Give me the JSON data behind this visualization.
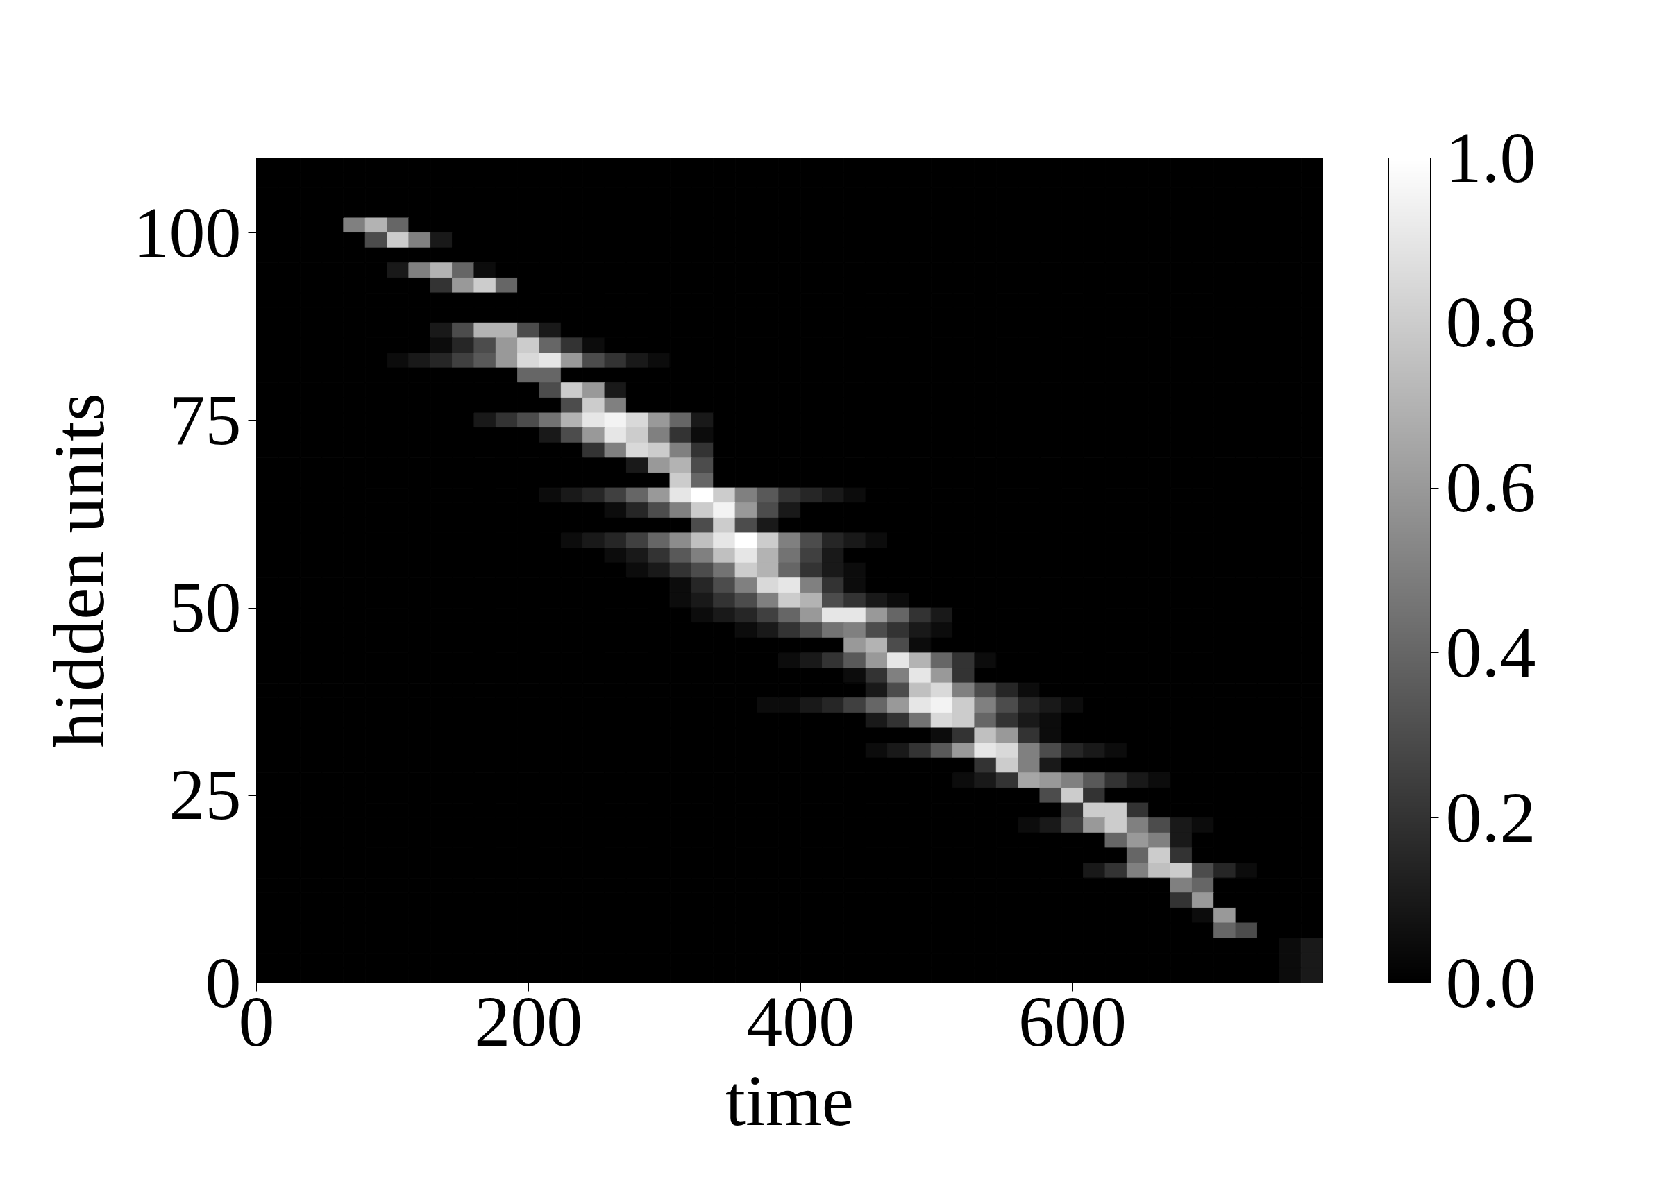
{
  "chart_data": {
    "type": "heatmap",
    "xlabel": "time",
    "ylabel": "hidden units",
    "xlim": [
      0,
      784
    ],
    "ylim": [
      0,
      110
    ],
    "xticks": [
      0,
      200,
      400,
      600
    ],
    "yticks": [
      0,
      25,
      50,
      75,
      100
    ],
    "clim": [
      0,
      1
    ],
    "cticks": [
      {
        "value": 0,
        "label": "0.0"
      },
      0.2,
      0.4,
      0.6,
      0.8,
      {
        "value": 1,
        "label": "1.0"
      }
    ],
    "colors": [
      "#000000",
      "#ffffff"
    ],
    "x": [
      8,
      24,
      40,
      56,
      72,
      88,
      104,
      120,
      136,
      152,
      168,
      184,
      200,
      216,
      232,
      248,
      264,
      280,
      296,
      312,
      328,
      344,
      360,
      376,
      392,
      408,
      424,
      440,
      456,
      472,
      488,
      504,
      520,
      536,
      552,
      568,
      584,
      600,
      616,
      632,
      648,
      664,
      680,
      696,
      712,
      728,
      744,
      760,
      776
    ],
    "y": [
      109,
      107,
      105,
      103,
      101,
      99,
      97,
      95,
      93,
      91,
      89,
      87,
      85,
      83,
      81,
      79,
      77,
      75,
      73,
      71,
      69,
      67,
      65,
      63,
      61,
      59,
      57,
      55,
      53,
      51,
      49,
      47,
      45,
      43,
      41,
      39,
      37,
      35,
      33,
      31,
      29,
      27,
      25,
      23,
      21,
      19,
      17,
      15,
      13,
      11,
      9,
      7,
      5,
      3,
      1
    ],
    "cells": [
      [
        0,
        0,
        0,
        0,
        0,
        0,
        0,
        0,
        0,
        0,
        0,
        0,
        0,
        0,
        0,
        0,
        0,
        0,
        0,
        0,
        0,
        0,
        0,
        0,
        0,
        0,
        0,
        0,
        0,
        0,
        0,
        0,
        0,
        0,
        0,
        0,
        0,
        0,
        0,
        0,
        0,
        0,
        0,
        0,
        0,
        0,
        0,
        0,
        0
      ],
      [
        0,
        0,
        0,
        0,
        0,
        0,
        0,
        0,
        0,
        0,
        0,
        0,
        0,
        0,
        0,
        0,
        0,
        0,
        0,
        0,
        0,
        0,
        0,
        0,
        0,
        0,
        0,
        0,
        0,
        0,
        0,
        0,
        0,
        0,
        0,
        0,
        0,
        0,
        0,
        0,
        0,
        0,
        0,
        0,
        0,
        0,
        0,
        0,
        0
      ],
      [
        0,
        0,
        0,
        0,
        0,
        0,
        0,
        0,
        0,
        0,
        0,
        0,
        0,
        0,
        0,
        0,
        0,
        0,
        0,
        0,
        0,
        0,
        0,
        0,
        0,
        0,
        0,
        0,
        0,
        0,
        0,
        0,
        0,
        0,
        0,
        0,
        0,
        0,
        0,
        0,
        0,
        0,
        0,
        0,
        0,
        0,
        0,
        0,
        0
      ],
      [
        0,
        0,
        0,
        0,
        0,
        0,
        0,
        0,
        0,
        0,
        0,
        0,
        0,
        0,
        0,
        0,
        0,
        0,
        0,
        0,
        0,
        0,
        0,
        0,
        0,
        0,
        0,
        0,
        0,
        0,
        0,
        0,
        0,
        0,
        0,
        0,
        0,
        0,
        0,
        0,
        0,
        0,
        0,
        0,
        0,
        0,
        0,
        0,
        0
      ],
      [
        0,
        0,
        0,
        0,
        0.5,
        0.7,
        0.4,
        0,
        0,
        0,
        0,
        0,
        0,
        0,
        0,
        0,
        0,
        0,
        0,
        0,
        0,
        0,
        0,
        0,
        0,
        0,
        0,
        0,
        0,
        0,
        0,
        0,
        0,
        0,
        0,
        0,
        0,
        0,
        0,
        0,
        0,
        0,
        0,
        0,
        0,
        0,
        0,
        0,
        0
      ],
      [
        0,
        0,
        0,
        0,
        0,
        0.3,
        0.8,
        0.5,
        0.1,
        0,
        0,
        0,
        0,
        0,
        0,
        0,
        0,
        0,
        0,
        0,
        0,
        0,
        0,
        0,
        0,
        0,
        0,
        0,
        0,
        0,
        0,
        0,
        0,
        0,
        0,
        0,
        0,
        0,
        0,
        0,
        0,
        0,
        0,
        0,
        0,
        0,
        0,
        0,
        0
      ],
      [
        0,
        0,
        0,
        0,
        0,
        0,
        0,
        0,
        0,
        0,
        0,
        0,
        0,
        0,
        0,
        0,
        0,
        0,
        0,
        0,
        0,
        0,
        0,
        0,
        0,
        0,
        0,
        0,
        0,
        0,
        0,
        0,
        0,
        0,
        0,
        0,
        0,
        0,
        0,
        0,
        0,
        0,
        0,
        0,
        0,
        0,
        0,
        0,
        0
      ],
      [
        0,
        0,
        0,
        0,
        0,
        0,
        0.1,
        0.5,
        0.7,
        0.4,
        0.05,
        0,
        0,
        0,
        0,
        0,
        0,
        0,
        0,
        0,
        0,
        0,
        0,
        0,
        0,
        0,
        0,
        0,
        0,
        0,
        0,
        0,
        0,
        0,
        0,
        0,
        0,
        0,
        0,
        0,
        0,
        0,
        0,
        0,
        0,
        0,
        0,
        0,
        0
      ],
      [
        0,
        0,
        0,
        0,
        0,
        0,
        0,
        0,
        0.2,
        0.6,
        0.8,
        0.4,
        0,
        0,
        0,
        0,
        0,
        0,
        0,
        0,
        0,
        0,
        0,
        0,
        0,
        0,
        0,
        0,
        0,
        0,
        0,
        0,
        0,
        0,
        0,
        0,
        0,
        0,
        0,
        0,
        0,
        0,
        0,
        0,
        0,
        0,
        0,
        0,
        0
      ],
      [
        0,
        0,
        0,
        0,
        0,
        0,
        0,
        0,
        0,
        0,
        0,
        0,
        0,
        0,
        0,
        0,
        0,
        0,
        0,
        0,
        0,
        0,
        0,
        0,
        0,
        0,
        0,
        0,
        0,
        0,
        0,
        0,
        0,
        0,
        0,
        0,
        0,
        0,
        0,
        0,
        0,
        0,
        0,
        0,
        0,
        0,
        0,
        0,
        0
      ],
      [
        0,
        0,
        0,
        0,
        0,
        0,
        0,
        0,
        0,
        0,
        0,
        0,
        0,
        0,
        0,
        0,
        0,
        0,
        0,
        0,
        0,
        0,
        0,
        0,
        0,
        0,
        0,
        0,
        0,
        0,
        0,
        0,
        0,
        0,
        0,
        0,
        0,
        0,
        0,
        0,
        0,
        0,
        0,
        0,
        0,
        0,
        0,
        0,
        0
      ],
      [
        0,
        0,
        0,
        0,
        0,
        0,
        0,
        0,
        0.1,
        0.3,
        0.7,
        0.7,
        0.3,
        0.1,
        0,
        0,
        0,
        0,
        0,
        0,
        0,
        0,
        0,
        0,
        0,
        0,
        0,
        0,
        0,
        0,
        0,
        0,
        0,
        0,
        0,
        0,
        0,
        0,
        0,
        0,
        0,
        0,
        0,
        0,
        0,
        0,
        0,
        0,
        0
      ],
      [
        0,
        0,
        0,
        0,
        0,
        0,
        0,
        0,
        0.05,
        0.15,
        0.3,
        0.6,
        0.8,
        0.4,
        0.2,
        0.05,
        0,
        0,
        0,
        0,
        0,
        0,
        0,
        0,
        0,
        0,
        0,
        0,
        0,
        0,
        0,
        0,
        0,
        0,
        0,
        0,
        0,
        0,
        0,
        0,
        0,
        0,
        0,
        0,
        0,
        0,
        0,
        0,
        0
      ],
      [
        0,
        0,
        0,
        0,
        0,
        0,
        0.05,
        0.1,
        0.15,
        0.25,
        0.35,
        0.6,
        0.85,
        0.9,
        0.6,
        0.3,
        0.2,
        0.1,
        0.05,
        0,
        0,
        0,
        0,
        0,
        0,
        0,
        0,
        0,
        0,
        0,
        0,
        0,
        0,
        0,
        0,
        0,
        0,
        0,
        0,
        0,
        0,
        0,
        0,
        0,
        0,
        0,
        0,
        0,
        0
      ],
      [
        0,
        0,
        0,
        0,
        0,
        0,
        0,
        0,
        0,
        0,
        0,
        0,
        0.4,
        0.4,
        0,
        0,
        0,
        0,
        0,
        0,
        0,
        0,
        0,
        0,
        0,
        0,
        0,
        0,
        0,
        0,
        0,
        0,
        0,
        0,
        0,
        0,
        0,
        0,
        0,
        0,
        0,
        0,
        0,
        0,
        0,
        0,
        0,
        0,
        0
      ],
      [
        0,
        0,
        0,
        0,
        0,
        0,
        0,
        0,
        0,
        0,
        0,
        0,
        0,
        0.3,
        0.8,
        0.6,
        0.1,
        0,
        0,
        0,
        0,
        0,
        0,
        0,
        0,
        0,
        0,
        0,
        0,
        0,
        0,
        0,
        0,
        0,
        0,
        0,
        0,
        0,
        0,
        0,
        0,
        0,
        0,
        0,
        0,
        0,
        0,
        0,
        0
      ],
      [
        0,
        0,
        0,
        0,
        0,
        0,
        0,
        0,
        0,
        0,
        0,
        0,
        0,
        0,
        0.3,
        0.8,
        0.5,
        0,
        0,
        0,
        0,
        0,
        0,
        0,
        0,
        0,
        0,
        0,
        0,
        0,
        0,
        0,
        0,
        0,
        0,
        0,
        0,
        0,
        0,
        0,
        0,
        0,
        0,
        0,
        0,
        0,
        0,
        0,
        0
      ],
      [
        0,
        0,
        0,
        0,
        0,
        0,
        0,
        0,
        0,
        0,
        0.1,
        0.2,
        0.3,
        0.45,
        0.7,
        0.9,
        0.95,
        0.85,
        0.6,
        0.4,
        0.1,
        0,
        0,
        0,
        0,
        0,
        0,
        0,
        0,
        0,
        0,
        0,
        0,
        0,
        0,
        0,
        0,
        0,
        0,
        0,
        0,
        0,
        0,
        0,
        0,
        0,
        0,
        0,
        0
      ],
      [
        0,
        0,
        0,
        0,
        0,
        0,
        0,
        0,
        0,
        0,
        0,
        0,
        0,
        0.1,
        0.3,
        0.6,
        0.9,
        0.8,
        0.5,
        0.2,
        0.05,
        0,
        0,
        0,
        0,
        0,
        0,
        0,
        0,
        0,
        0,
        0,
        0,
        0,
        0,
        0,
        0,
        0,
        0,
        0,
        0,
        0,
        0,
        0,
        0,
        0,
        0,
        0,
        0
      ],
      [
        0,
        0,
        0,
        0,
        0,
        0,
        0,
        0,
        0,
        0,
        0,
        0,
        0,
        0,
        0,
        0.2,
        0.5,
        0.85,
        0.8,
        0.5,
        0.2,
        0,
        0,
        0,
        0,
        0,
        0,
        0,
        0,
        0,
        0,
        0,
        0,
        0,
        0,
        0,
        0,
        0,
        0,
        0,
        0,
        0,
        0,
        0,
        0,
        0,
        0,
        0,
        0
      ],
      [
        0,
        0,
        0,
        0,
        0,
        0,
        0,
        0,
        0,
        0,
        0,
        0,
        0,
        0,
        0,
        0,
        0,
        0.1,
        0.6,
        0.7,
        0.3,
        0,
        0,
        0,
        0,
        0,
        0,
        0,
        0,
        0,
        0,
        0,
        0,
        0,
        0,
        0,
        0,
        0,
        0,
        0,
        0,
        0,
        0,
        0,
        0,
        0,
        0,
        0,
        0
      ],
      [
        0,
        0,
        0,
        0,
        0,
        0,
        0,
        0,
        0,
        0,
        0,
        0,
        0,
        0,
        0,
        0,
        0,
        0,
        0,
        0.8,
        0.4,
        0,
        0,
        0,
        0,
        0,
        0,
        0,
        0,
        0,
        0,
        0,
        0,
        0,
        0,
        0,
        0,
        0,
        0,
        0,
        0,
        0,
        0,
        0,
        0,
        0,
        0,
        0,
        0
      ],
      [
        0,
        0,
        0,
        0,
        0,
        0,
        0,
        0,
        0,
        0,
        0,
        0,
        0,
        0.05,
        0.1,
        0.15,
        0.25,
        0.4,
        0.6,
        0.9,
        1,
        0.8,
        0.5,
        0.35,
        0.2,
        0.15,
        0.1,
        0.05,
        0,
        0,
        0,
        0,
        0,
        0,
        0,
        0,
        0,
        0,
        0,
        0,
        0,
        0,
        0,
        0,
        0,
        0,
        0,
        0,
        0
      ],
      [
        0,
        0,
        0,
        0,
        0,
        0,
        0,
        0,
        0,
        0,
        0,
        0,
        0,
        0,
        0,
        0,
        0.05,
        0.15,
        0.3,
        0.5,
        0.8,
        0.95,
        0.6,
        0.3,
        0.1,
        0,
        0,
        0,
        0,
        0,
        0,
        0,
        0,
        0,
        0,
        0,
        0,
        0,
        0,
        0,
        0,
        0,
        0,
        0,
        0,
        0,
        0,
        0,
        0
      ],
      [
        0,
        0,
        0,
        0,
        0,
        0,
        0,
        0,
        0,
        0,
        0,
        0,
        0,
        0,
        0,
        0,
        0,
        0,
        0,
        0,
        0.3,
        0.8,
        0.3,
        0.1,
        0,
        0,
        0,
        0,
        0,
        0,
        0,
        0,
        0,
        0,
        0,
        0,
        0,
        0,
        0,
        0,
        0,
        0,
        0,
        0,
        0,
        0,
        0,
        0,
        0
      ],
      [
        0,
        0,
        0,
        0,
        0,
        0,
        0,
        0,
        0,
        0,
        0,
        0,
        0,
        0,
        0.05,
        0.1,
        0.15,
        0.25,
        0.4,
        0.55,
        0.75,
        0.9,
        1,
        0.8,
        0.5,
        0.3,
        0.15,
        0.1,
        0.05,
        0,
        0,
        0,
        0,
        0,
        0,
        0,
        0,
        0,
        0,
        0,
        0,
        0,
        0,
        0,
        0,
        0,
        0,
        0,
        0
      ],
      [
        0,
        0,
        0,
        0,
        0,
        0,
        0,
        0,
        0,
        0,
        0,
        0,
        0,
        0,
        0,
        0,
        0.05,
        0.1,
        0.2,
        0.35,
        0.5,
        0.75,
        0.9,
        0.7,
        0.45,
        0.25,
        0.1,
        0,
        0,
        0,
        0,
        0,
        0,
        0,
        0,
        0,
        0,
        0,
        0,
        0,
        0,
        0,
        0,
        0,
        0,
        0,
        0,
        0,
        0
      ],
      [
        0,
        0,
        0,
        0,
        0,
        0,
        0,
        0,
        0,
        0,
        0,
        0,
        0,
        0,
        0,
        0,
        0,
        0.05,
        0.1,
        0.2,
        0.3,
        0.45,
        0.8,
        0.7,
        0.4,
        0.2,
        0.1,
        0.05,
        0,
        0,
        0,
        0,
        0,
        0,
        0,
        0,
        0,
        0,
        0,
        0,
        0,
        0,
        0,
        0,
        0,
        0,
        0,
        0,
        0
      ],
      [
        0,
        0,
        0,
        0,
        0,
        0,
        0,
        0,
        0,
        0,
        0,
        0,
        0,
        0,
        0,
        0,
        0,
        0,
        0,
        0.05,
        0.15,
        0.3,
        0.5,
        0.85,
        0.9,
        0.5,
        0.2,
        0.05,
        0,
        0,
        0,
        0,
        0,
        0,
        0,
        0,
        0,
        0,
        0,
        0,
        0,
        0,
        0,
        0,
        0,
        0,
        0,
        0,
        0
      ],
      [
        0,
        0,
        0,
        0,
        0,
        0,
        0,
        0,
        0,
        0,
        0,
        0,
        0,
        0,
        0,
        0,
        0,
        0,
        0,
        0.05,
        0.1,
        0.2,
        0.3,
        0.5,
        0.8,
        0.7,
        0.3,
        0.2,
        0.1,
        0.05,
        0,
        0,
        0,
        0,
        0,
        0,
        0,
        0,
        0,
        0,
        0,
        0,
        0,
        0,
        0,
        0,
        0,
        0,
        0
      ],
      [
        0,
        0,
        0,
        0,
        0,
        0,
        0,
        0,
        0,
        0,
        0,
        0,
        0,
        0,
        0,
        0,
        0,
        0,
        0,
        0,
        0.05,
        0.1,
        0.15,
        0.25,
        0.4,
        0.6,
        0.9,
        0.9,
        0.6,
        0.4,
        0.2,
        0.1,
        0,
        0,
        0,
        0,
        0,
        0,
        0,
        0,
        0,
        0,
        0,
        0,
        0,
        0,
        0,
        0,
        0
      ],
      [
        0,
        0,
        0,
        0,
        0,
        0,
        0,
        0,
        0,
        0,
        0,
        0,
        0,
        0,
        0,
        0,
        0,
        0,
        0,
        0,
        0,
        0,
        0.05,
        0.1,
        0.2,
        0.3,
        0.45,
        0.5,
        0.3,
        0.2,
        0.1,
        0.05,
        0,
        0,
        0,
        0,
        0,
        0,
        0,
        0,
        0,
        0,
        0,
        0,
        0,
        0,
        0,
        0,
        0
      ],
      [
        0,
        0,
        0,
        0,
        0,
        0,
        0,
        0,
        0,
        0,
        0,
        0,
        0,
        0,
        0,
        0,
        0,
        0,
        0,
        0,
        0,
        0,
        0,
        0,
        0,
        0,
        0,
        0.6,
        0.7,
        0.3,
        0.05,
        0,
        0,
        0,
        0,
        0,
        0,
        0,
        0,
        0,
        0,
        0,
        0,
        0,
        0,
        0,
        0,
        0,
        0
      ],
      [
        0,
        0,
        0,
        0,
        0,
        0,
        0,
        0,
        0,
        0,
        0,
        0,
        0,
        0,
        0,
        0,
        0,
        0,
        0,
        0,
        0,
        0,
        0,
        0,
        0.05,
        0.1,
        0.2,
        0.35,
        0.6,
        0.9,
        0.7,
        0.4,
        0.2,
        0.05,
        0,
        0,
        0,
        0,
        0,
        0,
        0,
        0,
        0,
        0,
        0,
        0,
        0,
        0,
        0
      ],
      [
        0,
        0,
        0,
        0,
        0,
        0,
        0,
        0,
        0,
        0,
        0,
        0,
        0,
        0,
        0,
        0,
        0,
        0,
        0,
        0,
        0,
        0,
        0,
        0,
        0,
        0,
        0,
        0.05,
        0.2,
        0.5,
        0.9,
        0.6,
        0.2,
        0,
        0,
        0,
        0,
        0,
        0,
        0,
        0,
        0,
        0,
        0,
        0,
        0,
        0,
        0,
        0
      ],
      [
        0,
        0,
        0,
        0,
        0,
        0,
        0,
        0,
        0,
        0,
        0,
        0,
        0,
        0,
        0,
        0,
        0,
        0,
        0,
        0,
        0,
        0,
        0,
        0,
        0,
        0,
        0,
        0,
        0.1,
        0.3,
        0.75,
        0.85,
        0.5,
        0.3,
        0.15,
        0.05,
        0,
        0,
        0,
        0,
        0,
        0,
        0,
        0,
        0,
        0,
        0,
        0,
        0
      ],
      [
        0,
        0,
        0,
        0,
        0,
        0,
        0,
        0,
        0,
        0,
        0,
        0,
        0,
        0,
        0,
        0,
        0,
        0,
        0,
        0,
        0,
        0,
        0,
        0.05,
        0.05,
        0.1,
        0.15,
        0.25,
        0.4,
        0.6,
        0.9,
        0.95,
        0.8,
        0.5,
        0.3,
        0.15,
        0.1,
        0.05,
        0,
        0,
        0,
        0,
        0,
        0,
        0,
        0,
        0,
        0,
        0
      ],
      [
        0,
        0,
        0,
        0,
        0,
        0,
        0,
        0,
        0,
        0,
        0,
        0,
        0,
        0,
        0,
        0,
        0,
        0,
        0,
        0,
        0,
        0,
        0,
        0,
        0,
        0,
        0,
        0,
        0.1,
        0.2,
        0.45,
        0.85,
        0.8,
        0.4,
        0.2,
        0.1,
        0.05,
        0,
        0,
        0,
        0,
        0,
        0,
        0,
        0,
        0,
        0,
        0,
        0
      ],
      [
        0,
        0,
        0,
        0,
        0,
        0,
        0,
        0,
        0,
        0,
        0,
        0,
        0,
        0,
        0,
        0,
        0,
        0,
        0,
        0,
        0,
        0,
        0,
        0,
        0,
        0,
        0,
        0,
        0,
        0,
        0,
        0.05,
        0.2,
        0.75,
        0.6,
        0.2,
        0.05,
        0,
        0,
        0,
        0,
        0,
        0,
        0,
        0,
        0,
        0,
        0,
        0
      ],
      [
        0,
        0,
        0,
        0,
        0,
        0,
        0,
        0,
        0,
        0,
        0,
        0,
        0,
        0,
        0,
        0,
        0,
        0,
        0,
        0,
        0,
        0,
        0,
        0,
        0,
        0,
        0,
        0,
        0.05,
        0.1,
        0.2,
        0.35,
        0.6,
        0.9,
        0.85,
        0.5,
        0.3,
        0.15,
        0.1,
        0.05,
        0,
        0,
        0,
        0,
        0,
        0,
        0,
        0,
        0
      ],
      [
        0,
        0,
        0,
        0,
        0,
        0,
        0,
        0,
        0,
        0,
        0,
        0,
        0,
        0,
        0,
        0,
        0,
        0,
        0,
        0,
        0,
        0,
        0,
        0,
        0,
        0,
        0,
        0,
        0,
        0,
        0,
        0,
        0,
        0.2,
        0.8,
        0.5,
        0.1,
        0,
        0,
        0,
        0,
        0,
        0,
        0,
        0,
        0,
        0,
        0,
        0
      ],
      [
        0,
        0,
        0,
        0,
        0,
        0,
        0,
        0,
        0,
        0,
        0,
        0,
        0,
        0,
        0,
        0,
        0,
        0,
        0,
        0,
        0,
        0,
        0,
        0,
        0,
        0,
        0,
        0,
        0,
        0,
        0,
        0,
        0.05,
        0.1,
        0.2,
        0.65,
        0.6,
        0.5,
        0.35,
        0.2,
        0.1,
        0.05,
        0,
        0,
        0,
        0,
        0,
        0,
        0
      ],
      [
        0,
        0,
        0,
        0,
        0,
        0,
        0,
        0,
        0,
        0,
        0,
        0,
        0,
        0,
        0,
        0,
        0,
        0,
        0,
        0,
        0,
        0,
        0,
        0,
        0,
        0,
        0,
        0,
        0,
        0,
        0,
        0,
        0,
        0,
        0,
        0,
        0.3,
        0.8,
        0.2,
        0,
        0,
        0,
        0,
        0,
        0,
        0,
        0,
        0,
        0
      ],
      [
        0,
        0,
        0,
        0,
        0,
        0,
        0,
        0,
        0,
        0,
        0,
        0,
        0,
        0,
        0,
        0,
        0,
        0,
        0,
        0,
        0,
        0,
        0,
        0,
        0,
        0,
        0,
        0,
        0,
        0,
        0,
        0,
        0,
        0,
        0,
        0,
        0,
        0.2,
        0.8,
        0.8,
        0.2,
        0,
        0,
        0,
        0,
        0,
        0,
        0,
        0
      ],
      [
        0,
        0,
        0,
        0,
        0,
        0,
        0,
        0,
        0,
        0,
        0,
        0,
        0,
        0,
        0,
        0,
        0,
        0,
        0,
        0,
        0,
        0,
        0,
        0,
        0,
        0,
        0,
        0,
        0,
        0,
        0,
        0,
        0,
        0,
        0,
        0.05,
        0.1,
        0.25,
        0.6,
        0.8,
        0.5,
        0.3,
        0.1,
        0.05,
        0,
        0,
        0,
        0,
        0
      ],
      [
        0,
        0,
        0,
        0,
        0,
        0,
        0,
        0,
        0,
        0,
        0,
        0,
        0,
        0,
        0,
        0,
        0,
        0,
        0,
        0,
        0,
        0,
        0,
        0,
        0,
        0,
        0,
        0,
        0,
        0,
        0,
        0,
        0,
        0,
        0,
        0,
        0,
        0,
        0,
        0.4,
        0.6,
        0.5,
        0.1,
        0,
        0,
        0,
        0,
        0,
        0
      ],
      [
        0,
        0,
        0,
        0,
        0,
        0,
        0,
        0,
        0,
        0,
        0,
        0,
        0,
        0,
        0,
        0,
        0,
        0,
        0,
        0,
        0,
        0,
        0,
        0,
        0,
        0,
        0,
        0,
        0,
        0,
        0,
        0,
        0,
        0,
        0,
        0,
        0,
        0,
        0,
        0,
        0.4,
        0.8,
        0.2,
        0,
        0,
        0,
        0,
        0,
        0
      ],
      [
        0,
        0,
        0,
        0,
        0,
        0,
        0,
        0,
        0,
        0,
        0,
        0,
        0,
        0,
        0,
        0,
        0,
        0,
        0,
        0,
        0,
        0,
        0,
        0,
        0,
        0,
        0,
        0,
        0,
        0,
        0,
        0,
        0,
        0,
        0,
        0,
        0,
        0,
        0.1,
        0.2,
        0.5,
        0.75,
        0.8,
        0.3,
        0.15,
        0.05,
        0,
        0,
        0
      ],
      [
        0,
        0,
        0,
        0,
        0,
        0,
        0,
        0,
        0,
        0,
        0,
        0,
        0,
        0,
        0,
        0,
        0,
        0,
        0,
        0,
        0,
        0,
        0,
        0,
        0,
        0,
        0,
        0,
        0,
        0,
        0,
        0,
        0,
        0,
        0,
        0,
        0,
        0,
        0,
        0,
        0,
        0,
        0.5,
        0.4,
        0,
        0,
        0,
        0,
        0
      ],
      [
        0,
        0,
        0,
        0,
        0,
        0,
        0,
        0,
        0,
        0,
        0,
        0,
        0,
        0,
        0,
        0,
        0,
        0,
        0,
        0,
        0,
        0,
        0,
        0,
        0,
        0,
        0,
        0,
        0,
        0,
        0,
        0,
        0,
        0,
        0,
        0,
        0,
        0,
        0,
        0,
        0,
        0,
        0.2,
        0.6,
        0,
        0,
        0,
        0,
        0
      ],
      [
        0,
        0,
        0,
        0,
        0,
        0,
        0,
        0,
        0,
        0,
        0,
        0,
        0,
        0,
        0,
        0,
        0,
        0,
        0,
        0,
        0,
        0,
        0,
        0,
        0,
        0,
        0,
        0,
        0,
        0,
        0,
        0,
        0,
        0,
        0,
        0,
        0,
        0,
        0,
        0,
        0,
        0,
        0,
        0.05,
        0.6,
        0,
        0,
        0,
        0
      ],
      [
        0,
        0,
        0,
        0,
        0,
        0,
        0,
        0,
        0,
        0,
        0,
        0,
        0,
        0,
        0,
        0,
        0,
        0,
        0,
        0,
        0,
        0,
        0,
        0,
        0,
        0,
        0,
        0,
        0,
        0,
        0,
        0,
        0,
        0,
        0,
        0,
        0,
        0,
        0,
        0,
        0,
        0,
        0,
        0,
        0.4,
        0.3,
        0,
        0,
        0
      ],
      [
        0,
        0,
        0,
        0,
        0,
        0,
        0,
        0,
        0,
        0,
        0,
        0,
        0,
        0,
        0,
        0,
        0,
        0,
        0,
        0,
        0,
        0,
        0,
        0,
        0,
        0,
        0,
        0,
        0,
        0,
        0,
        0,
        0,
        0,
        0,
        0,
        0,
        0,
        0,
        0,
        0,
        0,
        0,
        0,
        0,
        0,
        0,
        0.05,
        0.1
      ],
      [
        0,
        0,
        0,
        0,
        0,
        0,
        0,
        0,
        0,
        0,
        0,
        0,
        0,
        0,
        0,
        0,
        0,
        0,
        0,
        0,
        0,
        0,
        0,
        0,
        0,
        0,
        0,
        0,
        0,
        0,
        0,
        0,
        0,
        0,
        0,
        0,
        0,
        0,
        0,
        0,
        0,
        0,
        0,
        0,
        0,
        0,
        0,
        0.05,
        0.1
      ],
      [
        0,
        0,
        0,
        0,
        0,
        0,
        0,
        0,
        0,
        0,
        0,
        0,
        0,
        0,
        0,
        0,
        0,
        0,
        0,
        0,
        0,
        0,
        0,
        0,
        0,
        0,
        0,
        0,
        0,
        0,
        0,
        0,
        0,
        0,
        0,
        0,
        0,
        0,
        0,
        0,
        0,
        0,
        0,
        0,
        0,
        0,
        0,
        0.05,
        0.1
      ]
    ]
  }
}
